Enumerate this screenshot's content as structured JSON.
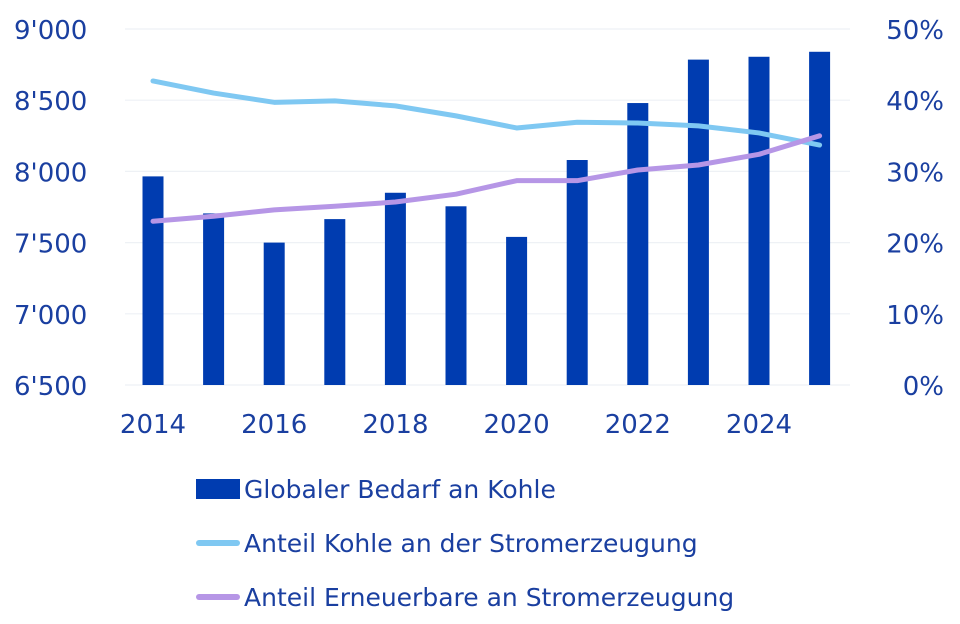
{
  "chart_data": {
    "type": "bar+line",
    "title": "",
    "categories": [
      "2014",
      "2015",
      "2016",
      "2017",
      "2018",
      "2019",
      "2020",
      "2021",
      "2022",
      "2023",
      "2024",
      "2025"
    ],
    "x_tick_labels": [
      "2014",
      "2016",
      "2018",
      "2020",
      "2022",
      "2024"
    ],
    "left_axis": {
      "ylim": [
        6500,
        9000
      ],
      "ticks": [
        6500,
        7000,
        7500,
        8000,
        8500,
        9000
      ],
      "tick_labels": [
        "6'500",
        "7'000",
        "7'500",
        "8'000",
        "8'500",
        "9'000"
      ],
      "label": ""
    },
    "right_axis": {
      "ylim": [
        0,
        50
      ],
      "ticks": [
        0,
        10,
        20,
        30,
        40,
        50
      ],
      "tick_labels": [
        "0%",
        "10%",
        "20%",
        "30%",
        "40%",
        "50%"
      ],
      "label": ""
    },
    "grid": true,
    "legend_position": "bottom",
    "series": [
      {
        "name": "Globaler Bedarf an Kohle",
        "type": "bar",
        "axis": "left",
        "color": "#003cb0",
        "values": [
          7965,
          7705,
          7500,
          7665,
          7850,
          7755,
          7540,
          8080,
          8480,
          8785,
          8805,
          8840
        ]
      },
      {
        "name": "Anteil Kohle an der Stromerzeugung",
        "type": "line",
        "axis": "right",
        "color": "#7fc8f2",
        "values": [
          42.7,
          41.0,
          39.7,
          39.9,
          39.2,
          37.8,
          36.1,
          36.9,
          36.8,
          36.4,
          35.4,
          33.7
        ]
      },
      {
        "name": "Anteil Erneuerbare an Stromerzeugung",
        "type": "line",
        "axis": "right",
        "color": "#b696e6",
        "values": [
          23.0,
          23.7,
          24.6,
          25.1,
          25.7,
          26.8,
          28.7,
          28.7,
          30.2,
          30.9,
          32.4,
          35.0
        ]
      }
    ]
  }
}
